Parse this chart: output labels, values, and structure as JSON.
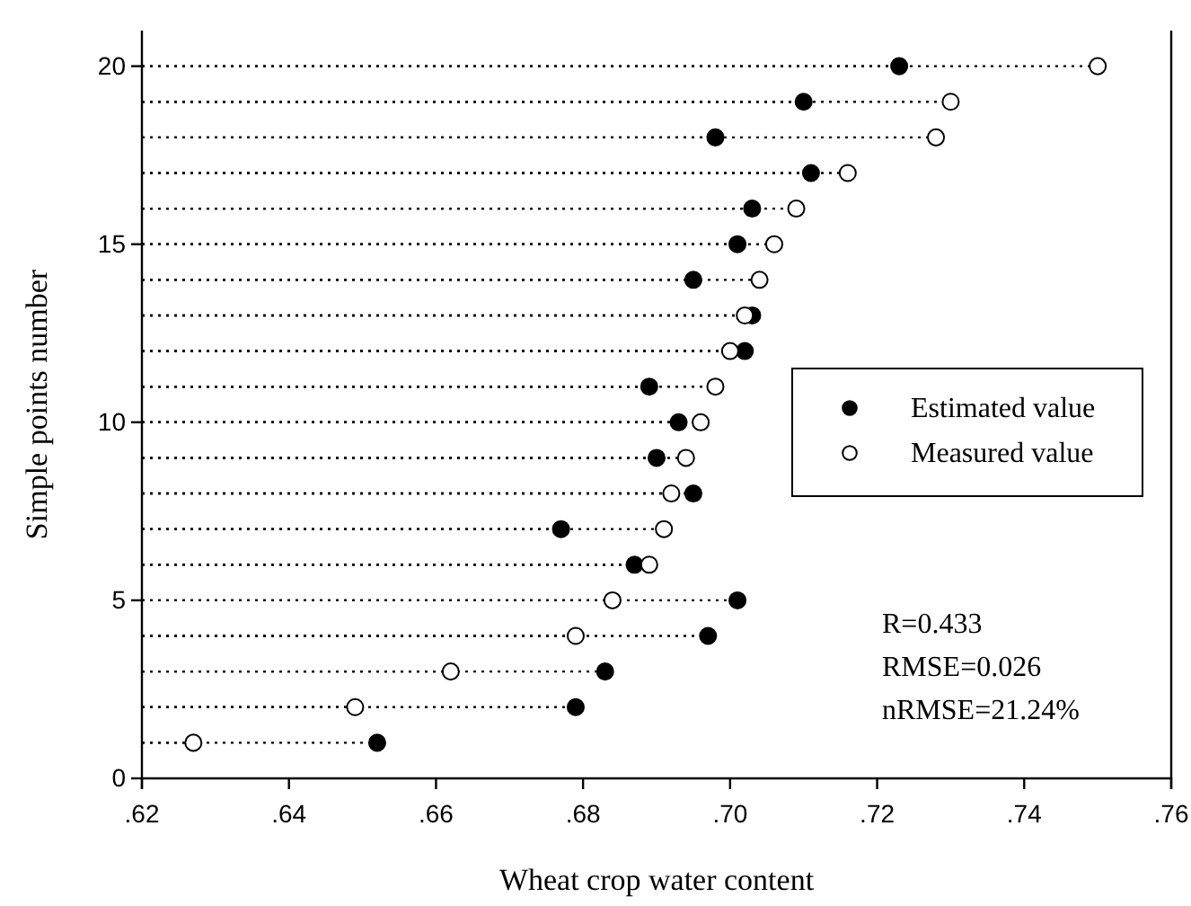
{
  "chart_data": {
    "type": "lollipop",
    "orientation": "horizontal",
    "xlabel": "Wheat crop water content",
    "ylabel": "Simple points number",
    "xlim": [
      0.62,
      0.76
    ],
    "xticks": [
      {
        "value": 0.62,
        "label": ".62"
      },
      {
        "value": 0.64,
        "label": ".64"
      },
      {
        "value": 0.66,
        "label": ".66"
      },
      {
        "value": 0.68,
        "label": ".68"
      },
      {
        "value": 0.7,
        "label": ".70"
      },
      {
        "value": 0.72,
        "label": ".72"
      },
      {
        "value": 0.74,
        "label": ".74"
      },
      {
        "value": 0.76,
        "label": ".76"
      }
    ],
    "categories": [
      "20",
      null,
      null,
      null,
      null,
      "15",
      null,
      null,
      null,
      null,
      "10",
      null,
      null,
      null,
      null,
      "5",
      null,
      null,
      null,
      null,
      "0"
    ],
    "marker": "circle",
    "line_style": "dotted",
    "legend": "right",
    "series": [
      {
        "name": "Estimated value",
        "color": "#000000",
        "values": [
          0.723,
          0.71,
          0.698,
          0.711,
          0.703,
          0.701,
          0.695,
          0.703,
          0.702,
          0.689,
          0.693,
          0.69,
          0.695,
          0.677,
          0.687,
          0.701,
          0.697,
          0.683,
          0.679,
          0.652,
          null
        ]
      },
      {
        "name": "Measured value",
        "color": "#ffffff",
        "values": [
          0.75,
          0.73,
          0.728,
          0.716,
          0.709,
          0.706,
          0.704,
          0.702,
          0.7,
          0.698,
          0.696,
          0.694,
          0.692,
          0.691,
          0.689,
          0.684,
          0.679,
          0.662,
          0.649,
          0.627,
          null
        ]
      }
    ],
    "annotations": [
      "R=0.433",
      "RMSE=0.026",
      "nRMSE=21.24%"
    ]
  }
}
